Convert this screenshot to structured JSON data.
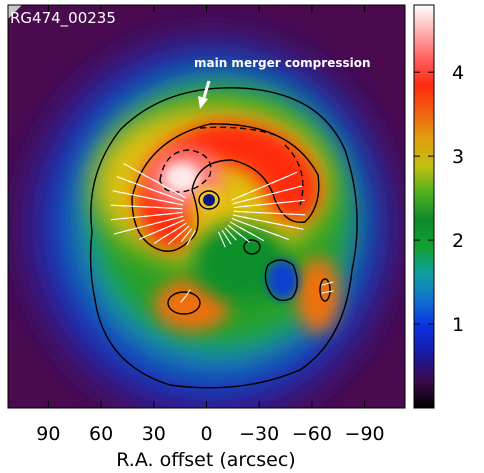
{
  "chart_data": {
    "type": "heatmap",
    "title": "RG474_00235",
    "xlabel": "R.A. offset (arcsec)",
    "ylabel": "",
    "x_ticks": [
      {
        "value": 90,
        "label": "90"
      },
      {
        "value": 60,
        "label": "60"
      },
      {
        "value": 30,
        "label": "30"
      },
      {
        "value": 0,
        "label": "0"
      },
      {
        "value": -30,
        "label": "−30"
      },
      {
        "value": -60,
        "label": "−60"
      },
      {
        "value": -90,
        "label": "−90"
      }
    ],
    "xlim": [
      113,
      -113
    ],
    "ylim": [
      -113,
      113
    ],
    "colorbar": {
      "range": [
        0,
        4.8
      ],
      "ticks": [
        {
          "value": 1,
          "label": "1"
        },
        {
          "value": 2,
          "label": "2"
        },
        {
          "value": 3,
          "label": "3"
        },
        {
          "value": 4,
          "label": "4"
        }
      ],
      "colors": [
        "#000000",
        "#3a0a4a",
        "#1a1aa0",
        "#0a30e0",
        "#1070d0",
        "#10a0a0",
        "#10a030",
        "#0d8a2a",
        "#50b020",
        "#c0c010",
        "#e0a010",
        "#f06010",
        "#ff2a10",
        "#ff6060",
        "#ffb0b0",
        "#ffffff"
      ]
    },
    "annotations": [
      {
        "text": "main merger compression"
      }
    ]
  }
}
